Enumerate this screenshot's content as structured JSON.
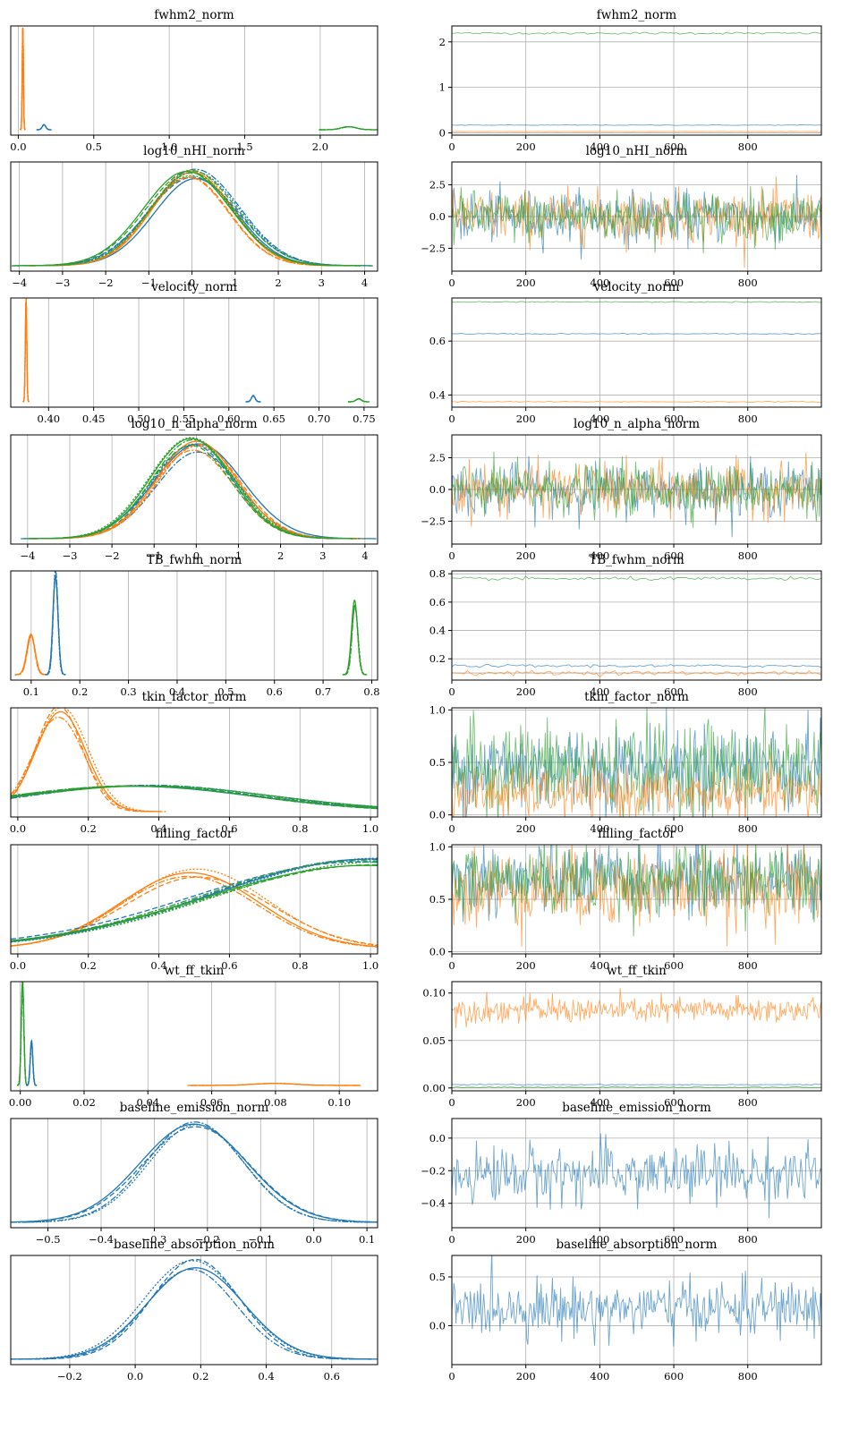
{
  "chart_data": [
    {
      "type": "line",
      "kind": "density",
      "title": "fwhm2_norm",
      "xlim": [
        -0.05,
        2.38
      ],
      "xticks": [
        0.0,
        0.5,
        1.0,
        1.5,
        2.0
      ],
      "xtick_labels": [
        "0.0",
        "0.5",
        "1.0",
        "1.5",
        "2.0"
      ],
      "series": [
        {
          "color": "#ff7f0e",
          "center": 0.03,
          "sd": 0.004,
          "peak": 1.0
        },
        {
          "color": "#1f77b4",
          "center": 0.17,
          "sd": 0.012,
          "peak": 0.05
        },
        {
          "color": "#2ca02c",
          "center": 2.19,
          "sd": 0.05,
          "peak": 0.03
        }
      ]
    },
    {
      "type": "line",
      "kind": "trace",
      "title": "fwhm2_norm",
      "xlim": [
        0,
        999
      ],
      "ylim": [
        -0.05,
        2.35
      ],
      "xticks": [
        0,
        200,
        400,
        600,
        800
      ],
      "xtick_labels": [
        "0",
        "200",
        "400",
        "600",
        "800"
      ],
      "yticks": [
        0,
        1,
        2
      ],
      "ytick_labels": [
        "0",
        "1",
        "2"
      ],
      "series": [
        {
          "color": "#2ca02c",
          "mean": 2.19,
          "noise": 0.012
        },
        {
          "color": "#1f77b4",
          "mean": 0.17,
          "noise": 0.004
        },
        {
          "color": "#ff7f0e",
          "mean": 0.03,
          "noise": 0.002
        }
      ]
    },
    {
      "type": "line",
      "kind": "density",
      "title": "log10_nHI_norm",
      "xlim": [
        -4.2,
        4.3
      ],
      "xticks": [
        -4,
        -3,
        -2,
        -1,
        0,
        1,
        2,
        3,
        4
      ],
      "xtick_labels": [
        "−4",
        "−3",
        "−2",
        "−1",
        "0",
        "1",
        "2",
        "3",
        "4"
      ],
      "series": [
        {
          "color": "#1f77b4",
          "center": 0.05,
          "sd": 1.0,
          "peak": 0.92
        },
        {
          "color": "#ff7f0e",
          "center": 0.0,
          "sd": 0.98,
          "peak": 0.93
        },
        {
          "color": "#2ca02c",
          "center": -0.05,
          "sd": 1.0,
          "peak": 0.95
        }
      ]
    },
    {
      "type": "line",
      "kind": "trace",
      "title": "log10_nHI_norm",
      "xlim": [
        0,
        999
      ],
      "ylim": [
        -4.3,
        4.3
      ],
      "xticks": [
        0,
        200,
        400,
        600,
        800
      ],
      "xtick_labels": [
        "0",
        "200",
        "400",
        "600",
        "800"
      ],
      "yticks": [
        -2.5,
        0.0,
        2.5
      ],
      "ytick_labels": [
        "−2.5",
        "0.0",
        "2.5"
      ],
      "series": [
        {
          "color": "#1f77b4",
          "mean": 0,
          "noise": 1.0
        },
        {
          "color": "#ff7f0e",
          "mean": 0,
          "noise": 1.0
        },
        {
          "color": "#2ca02c",
          "mean": 0,
          "noise": 1.0
        }
      ]
    },
    {
      "type": "line",
      "kind": "density",
      "title": "velocity_norm",
      "xlim": [
        0.358,
        0.765
      ],
      "xticks": [
        0.4,
        0.45,
        0.5,
        0.55,
        0.6,
        0.65,
        0.7,
        0.75
      ],
      "xtick_labels": [
        "0.40",
        "0.45",
        "0.50",
        "0.55",
        "0.60",
        "0.65",
        "0.70",
        "0.75"
      ],
      "series": [
        {
          "color": "#ff7f0e",
          "center": 0.375,
          "sd": 0.0008,
          "peak": 1.0
        },
        {
          "color": "#1f77b4",
          "center": 0.627,
          "sd": 0.002,
          "peak": 0.06
        },
        {
          "color": "#2ca02c",
          "center": 0.744,
          "sd": 0.003,
          "peak": 0.03
        }
      ]
    },
    {
      "type": "line",
      "kind": "trace",
      "title": "velocity_norm",
      "xlim": [
        0,
        999
      ],
      "ylim": [
        0.355,
        0.76
      ],
      "xticks": [
        0,
        200,
        400,
        600,
        800
      ],
      "xtick_labels": [
        "0",
        "200",
        "400",
        "600",
        "800"
      ],
      "yticks": [
        0.4,
        0.6
      ],
      "ytick_labels": [
        "0.4",
        "0.6"
      ],
      "series": [
        {
          "color": "#2ca02c",
          "mean": 0.745,
          "noise": 0.001
        },
        {
          "color": "#1f77b4",
          "mean": 0.627,
          "noise": 0.001
        },
        {
          "color": "#ff7f0e",
          "mean": 0.375,
          "noise": 0.001
        }
      ]
    },
    {
      "type": "line",
      "kind": "density",
      "title": "log10_n_alpha_norm",
      "xlim": [
        -4.4,
        4.3
      ],
      "xticks": [
        -4,
        -3,
        -2,
        -1,
        0,
        1,
        2,
        3,
        4
      ],
      "xtick_labels": [
        "−4",
        "−3",
        "−2",
        "−1",
        "0",
        "1",
        "2",
        "3",
        "4"
      ],
      "series": [
        {
          "color": "#1f77b4",
          "center": 0.0,
          "sd": 1.0,
          "peak": 0.9
        },
        {
          "color": "#ff7f0e",
          "center": 0.0,
          "sd": 1.0,
          "peak": 0.92
        },
        {
          "color": "#2ca02c",
          "center": -0.1,
          "sd": 0.98,
          "peak": 0.96
        }
      ]
    },
    {
      "type": "line",
      "kind": "trace",
      "title": "log10_n_alpha_norm",
      "xlim": [
        0,
        999
      ],
      "ylim": [
        -4.3,
        4.3
      ],
      "xticks": [
        0,
        200,
        400,
        600,
        800
      ],
      "xtick_labels": [
        "0",
        "200",
        "400",
        "600",
        "800"
      ],
      "yticks": [
        -2.5,
        0.0,
        2.5
      ],
      "ytick_labels": [
        "−2.5",
        "0.0",
        "2.5"
      ],
      "series": [
        {
          "color": "#1f77b4",
          "mean": 0,
          "noise": 1.0
        },
        {
          "color": "#ff7f0e",
          "mean": 0,
          "noise": 1.0
        },
        {
          "color": "#2ca02c",
          "mean": 0,
          "noise": 1.0
        }
      ]
    },
    {
      "type": "line",
      "kind": "density",
      "title": "TB_fwhm_norm",
      "xlim": [
        0.058,
        0.812
      ],
      "xticks": [
        0.1,
        0.2,
        0.3,
        0.4,
        0.5,
        0.6,
        0.7,
        0.8
      ],
      "xtick_labels": [
        "0.1",
        "0.2",
        "0.3",
        "0.4",
        "0.5",
        "0.6",
        "0.7",
        "0.8"
      ],
      "series": [
        {
          "color": "#ff7f0e",
          "center": 0.1,
          "sd": 0.008,
          "peak": 0.4
        },
        {
          "color": "#1f77b4",
          "center": 0.15,
          "sd": 0.005,
          "peak": 1.0
        },
        {
          "color": "#2ca02c",
          "center": 0.765,
          "sd": 0.006,
          "peak": 0.72
        }
      ]
    },
    {
      "type": "line",
      "kind": "trace",
      "title": "TB_fwhm_norm",
      "xlim": [
        0,
        999
      ],
      "ylim": [
        0.05,
        0.82
      ],
      "xticks": [
        0,
        200,
        400,
        600,
        800
      ],
      "xtick_labels": [
        "0",
        "200",
        "400",
        "600",
        "800"
      ],
      "yticks": [
        0.2,
        0.4,
        0.6,
        0.8
      ],
      "ytick_labels": [
        "0.2",
        "0.4",
        "0.6",
        "0.8"
      ],
      "extra_yticks": [
        0.1
      ],
      "series": [
        {
          "color": "#2ca02c",
          "mean": 0.765,
          "noise": 0.006
        },
        {
          "color": "#1f77b4",
          "mean": 0.15,
          "noise": 0.005
        },
        {
          "color": "#ff7f0e",
          "mean": 0.1,
          "noise": 0.008
        }
      ]
    },
    {
      "type": "line",
      "kind": "density",
      "title": "tkin_factor_norm",
      "xlim": [
        -0.02,
        1.02
      ],
      "xticks": [
        0.0,
        0.2,
        0.4,
        0.6,
        0.8,
        1.0
      ],
      "xtick_labels": [
        "0.0",
        "0.2",
        "0.4",
        "0.6",
        "0.8",
        "1.0"
      ],
      "series": [
        {
          "color": "#ff7f0e",
          "center": 0.12,
          "sd": 0.07,
          "peak": 1.0
        },
        {
          "color": "#1f77b4",
          "center": 0.35,
          "sd": 0.35,
          "peak": 0.25
        },
        {
          "color": "#2ca02c",
          "center": 0.35,
          "sd": 0.35,
          "peak": 0.25
        }
      ]
    },
    {
      "type": "line",
      "kind": "trace",
      "title": "tkin_factor_norm",
      "xlim": [
        0,
        999
      ],
      "ylim": [
        -0.02,
        1.02
      ],
      "xticks": [
        0,
        200,
        400,
        600,
        800
      ],
      "xtick_labels": [
        "0",
        "200",
        "400",
        "600",
        "800"
      ],
      "yticks": [
        0.0,
        0.5,
        1.0
      ],
      "ytick_labels": [
        "0.0",
        "0.5",
        "1.0"
      ],
      "series": [
        {
          "color": "#1f77b4",
          "mean": 0.45,
          "noise": 0.2
        },
        {
          "color": "#2ca02c",
          "mean": 0.45,
          "noise": 0.22
        },
        {
          "color": "#ff7f0e",
          "mean": 0.2,
          "noise": 0.12
        }
      ]
    },
    {
      "type": "line",
      "kind": "density",
      "title": "filling_factor",
      "xlim": [
        -0.02,
        1.02
      ],
      "xticks": [
        0.0,
        0.2,
        0.4,
        0.6,
        0.8,
        1.0
      ],
      "xtick_labels": [
        "0.0",
        "0.2",
        "0.4",
        "0.6",
        "0.8",
        "1.0"
      ],
      "series": [
        {
          "color": "#ff7f0e",
          "center": 0.5,
          "sd": 0.2,
          "peak": 0.75
        },
        {
          "color": "#1f77b4",
          "center": 1.0,
          "sd": 0.45,
          "peak": 0.85
        },
        {
          "color": "#2ca02c",
          "center": 1.0,
          "sd": 0.45,
          "peak": 0.88
        }
      ]
    },
    {
      "type": "line",
      "kind": "trace",
      "title": "filling_factor",
      "xlim": [
        0,
        999
      ],
      "ylim": [
        -0.02,
        1.02
      ],
      "xticks": [
        0,
        200,
        400,
        600,
        800
      ],
      "xtick_labels": [
        "0",
        "200",
        "400",
        "600",
        "800"
      ],
      "yticks": [
        0.0,
        0.5,
        1.0
      ],
      "ytick_labels": [
        "0.0",
        "0.5",
        "1.0"
      ],
      "series": [
        {
          "color": "#1f77b4",
          "mean": 0.68,
          "noise": 0.17
        },
        {
          "color": "#ff7f0e",
          "mean": 0.6,
          "noise": 0.18
        },
        {
          "color": "#2ca02c",
          "mean": 0.68,
          "noise": 0.17
        }
      ]
    },
    {
      "type": "line",
      "kind": "density",
      "title": "wt_ff_tkin",
      "xlim": [
        -0.003,
        0.112
      ],
      "xticks": [
        0.0,
        0.02,
        0.04,
        0.06,
        0.08,
        0.1
      ],
      "xtick_labels": [
        "0.00",
        "0.02",
        "0.04",
        "0.06",
        "0.08",
        "0.10"
      ],
      "series": [
        {
          "color": "#2ca02c",
          "center": 0.0007,
          "sd": 0.0004,
          "peak": 1.0
        },
        {
          "color": "#1f77b4",
          "center": 0.0035,
          "sd": 0.0004,
          "peak": 0.45
        },
        {
          "color": "#ff7f0e",
          "center": 0.08,
          "sd": 0.007,
          "peak": 0.02
        }
      ]
    },
    {
      "type": "line",
      "kind": "trace",
      "title": "wt_ff_tkin",
      "xlim": [
        0,
        999
      ],
      "ylim": [
        -0.003,
        0.112
      ],
      "xticks": [
        0,
        200,
        400,
        600,
        800
      ],
      "xtick_labels": [
        "0",
        "200",
        "400",
        "600",
        "800"
      ],
      "yticks": [
        0.0,
        0.05,
        0.1
      ],
      "ytick_labels": [
        "0.00",
        "0.05",
        "0.10"
      ],
      "series": [
        {
          "color": "#ff7f0e",
          "mean": 0.082,
          "noise": 0.007
        },
        {
          "color": "#1f77b4",
          "mean": 0.0035,
          "noise": 0.0003
        },
        {
          "color": "#2ca02c",
          "mean": 0.0007,
          "noise": 0.0003
        }
      ]
    },
    {
      "type": "line",
      "kind": "density",
      "title": "baseline_emission_norm",
      "xlim": [
        -0.57,
        0.12
      ],
      "xticks": [
        -0.5,
        -0.4,
        -0.3,
        -0.2,
        -0.1,
        0.0,
        0.1
      ],
      "xtick_labels": [
        "−0.5",
        "−0.4",
        "−0.3",
        "−0.2",
        "−0.1",
        "0.0",
        "0.1"
      ],
      "series": [
        {
          "color": "#1f77b4",
          "center": -0.22,
          "sd": 0.095,
          "peak": 0.95
        }
      ]
    },
    {
      "type": "line",
      "kind": "trace",
      "title": "baseline_emission_norm",
      "xlim": [
        0,
        999
      ],
      "ylim": [
        -0.55,
        0.12
      ],
      "xticks": [
        0,
        200,
        400,
        600,
        800
      ],
      "xtick_labels": [
        "0",
        "200",
        "400",
        "600",
        "800"
      ],
      "yticks": [
        -0.4,
        -0.2,
        0.0
      ],
      "ytick_labels": [
        "−0.4",
        "−0.2",
        "0.0"
      ],
      "series": [
        {
          "color": "#1f77b4",
          "mean": -0.22,
          "noise": 0.09
        }
      ]
    },
    {
      "type": "line",
      "kind": "density",
      "title": "baseline_absorption_norm",
      "xlim": [
        -0.38,
        0.74
      ],
      "xticks": [
        -0.2,
        0.0,
        0.2,
        0.4,
        0.6
      ],
      "xtick_labels": [
        "−0.2",
        "0.0",
        "0.2",
        "0.4",
        "0.6"
      ],
      "series": [
        {
          "color": "#1f77b4",
          "center": 0.18,
          "sd": 0.14,
          "peak": 0.95
        }
      ]
    },
    {
      "type": "line",
      "kind": "trace",
      "title": "baseline_absorption_norm",
      "xlim": [
        0,
        999
      ],
      "ylim": [
        -0.4,
        0.72
      ],
      "xticks": [
        0,
        200,
        400,
        600,
        800
      ],
      "xtick_labels": [
        "0",
        "200",
        "400",
        "600",
        "800"
      ],
      "yticks": [
        0.0,
        0.5
      ],
      "ytick_labels": [
        "0.0",
        "0.5"
      ],
      "series": [
        {
          "color": "#1f77b4",
          "mean": 0.18,
          "noise": 0.14
        }
      ]
    }
  ]
}
